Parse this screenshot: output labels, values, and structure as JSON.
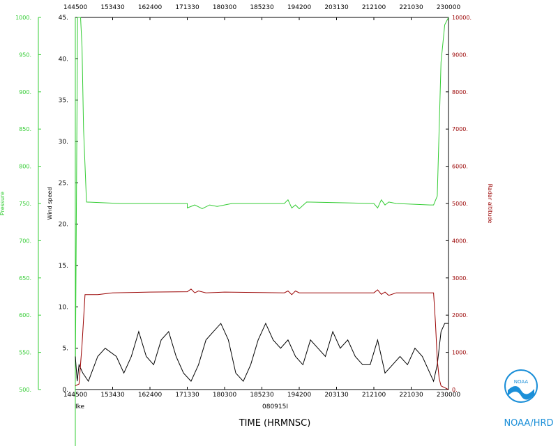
{
  "chart_data": {
    "type": "line",
    "storm": "Ike",
    "flight_id": "080915I",
    "xlabel": "TIME (HRMNSC)",
    "x_ticks": [
      "144500",
      "153430",
      "162400",
      "171330",
      "180300",
      "185230",
      "194200",
      "203130",
      "212100",
      "221030",
      "230000"
    ],
    "axes": {
      "pressure": {
        "label": "Pressure",
        "ylim": [
          500,
          1000
        ],
        "ticks": [
          "500.",
          "550.",
          "600.",
          "650.",
          "700.",
          "750.",
          "800.",
          "850.",
          "900.",
          "950.",
          "1000."
        ],
        "color": "#33cc33"
      },
      "wind": {
        "label": "Wind speed",
        "ylim": [
          0,
          45
        ],
        "ticks": [
          "0.",
          "5.",
          "10.",
          "15.",
          "20.",
          "25.",
          "30.",
          "35.",
          "40.",
          "45."
        ],
        "color": "#000000"
      },
      "radar": {
        "label": "Radar altitude",
        "ylim": [
          0,
          10000
        ],
        "ticks": [
          "0.",
          "1000.",
          "2000.",
          "3000.",
          "4000.",
          "5000.",
          "6000.",
          "7000.",
          "8000.",
          "9000.",
          "10000."
        ],
        "color": "#990000"
      }
    },
    "series": [
      {
        "name": "Pressure",
        "axis": "pressure",
        "color": "#33cc33",
        "x": [
          0.0,
          0.006,
          0.01,
          0.014,
          0.018,
          0.022,
          0.03,
          0.12,
          0.3,
          0.3,
          0.32,
          0.34,
          0.36,
          0.38,
          0.42,
          0.56,
          0.57,
          0.58,
          0.59,
          0.6,
          0.62,
          0.8,
          0.81,
          0.82,
          0.83,
          0.84,
          0.86,
          0.95,
          0.96,
          0.97,
          0.975,
          0.98,
          0.99,
          1.0
        ],
        "y": [
          512,
          1000,
          1000,
          1000,
          960,
          850,
          752,
          750,
          750,
          744,
          748,
          743,
          748,
          746,
          750,
          750,
          755,
          744,
          748,
          743,
          752,
          750,
          744,
          755,
          748,
          752,
          750,
          748,
          748,
          760,
          850,
          940,
          990,
          1000
        ]
      },
      {
        "name": "Wind speed",
        "axis": "wind",
        "color": "#000000",
        "x": [
          0.0,
          0.005,
          0.01,
          0.02,
          0.035,
          0.06,
          0.08,
          0.11,
          0.13,
          0.15,
          0.17,
          0.19,
          0.21,
          0.23,
          0.25,
          0.27,
          0.29,
          0.31,
          0.33,
          0.35,
          0.37,
          0.39,
          0.41,
          0.43,
          0.45,
          0.47,
          0.49,
          0.51,
          0.53,
          0.55,
          0.57,
          0.59,
          0.61,
          0.63,
          0.65,
          0.67,
          0.69,
          0.71,
          0.73,
          0.75,
          0.77,
          0.79,
          0.81,
          0.83,
          0.85,
          0.87,
          0.89,
          0.91,
          0.93,
          0.95,
          0.96,
          0.97,
          0.98,
          0.99,
          1.0
        ],
        "y": [
          4,
          1,
          3,
          2,
          1,
          4,
          5,
          4,
          2,
          4,
          7,
          4,
          3,
          6,
          7,
          4,
          2,
          1,
          3,
          6,
          7,
          8,
          6,
          2,
          1,
          3,
          6,
          8,
          6,
          5,
          6,
          4,
          3,
          6,
          5,
          4,
          7,
          5,
          6,
          4,
          3,
          3,
          6,
          2,
          3,
          4,
          3,
          5,
          4,
          2,
          1,
          3,
          7,
          8,
          8
        ]
      },
      {
        "name": "Radar altitude",
        "axis": "radar",
        "color": "#990000",
        "x": [
          0.0,
          0.01,
          0.018,
          0.026,
          0.06,
          0.1,
          0.2,
          0.3,
          0.31,
          0.32,
          0.33,
          0.35,
          0.4,
          0.56,
          0.57,
          0.58,
          0.59,
          0.6,
          0.62,
          0.8,
          0.81,
          0.82,
          0.83,
          0.84,
          0.86,
          0.96,
          0.965,
          0.97,
          0.975,
          0.98,
          0.99,
          1.0
        ],
        "y": [
          100,
          150,
          1200,
          2550,
          2550,
          2600,
          2620,
          2630,
          2700,
          2600,
          2650,
          2600,
          2620,
          2600,
          2650,
          2550,
          2650,
          2600,
          2600,
          2600,
          2680,
          2560,
          2620,
          2530,
          2600,
          2600,
          1800,
          800,
          300,
          100,
          50,
          0
        ]
      }
    ]
  },
  "logo": {
    "text": "NOAA/HRD",
    "emblem_text": "NOAA"
  }
}
